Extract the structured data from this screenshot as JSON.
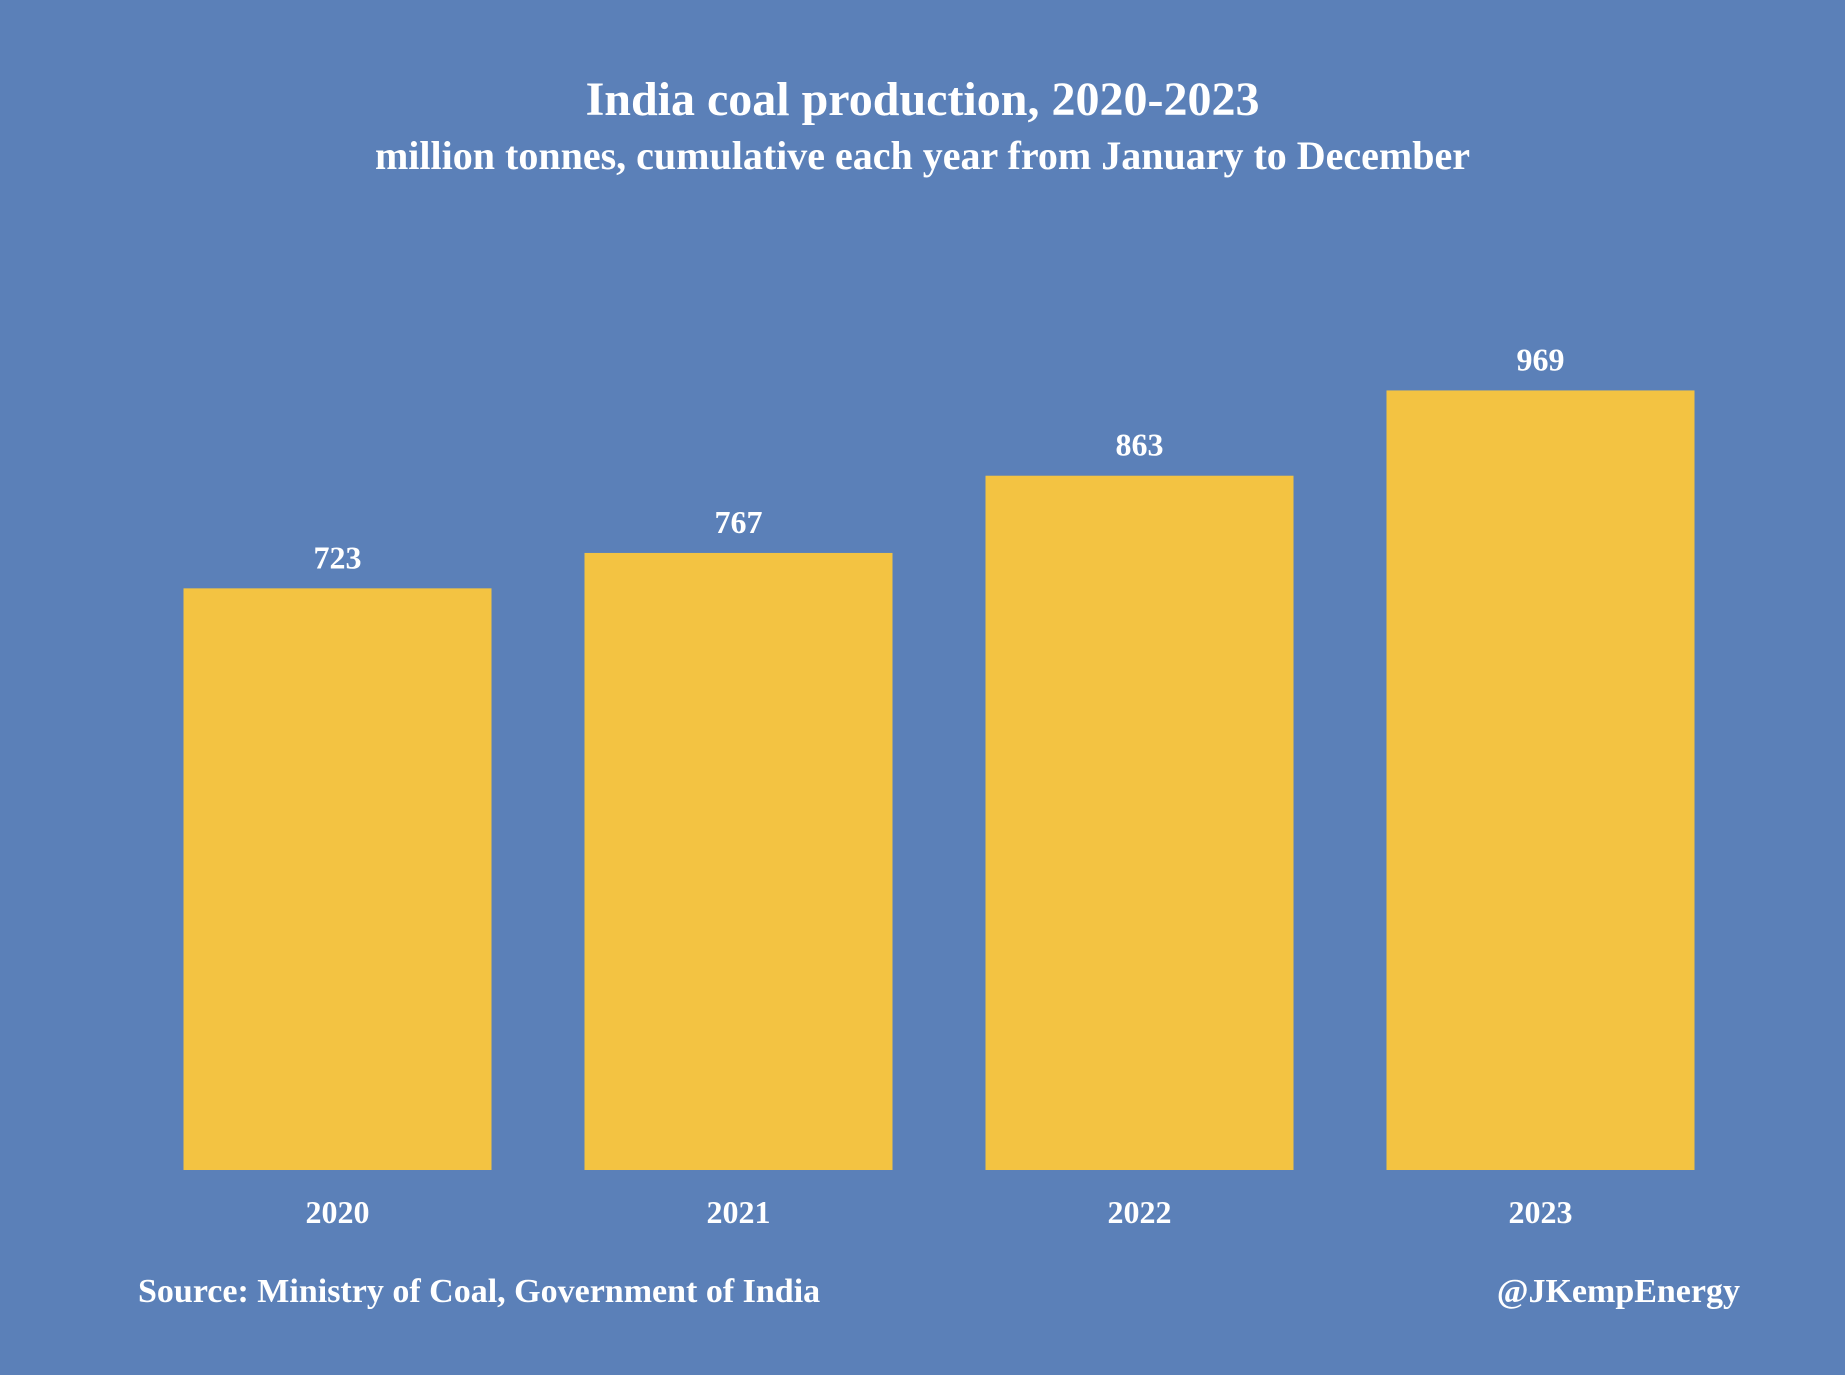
{
  "colors": {
    "background": "#5b80b8",
    "bar": "#f3c342",
    "text": "#ffffff"
  },
  "chart_data": {
    "type": "bar",
    "title": "India coal production, 2020-2023",
    "subtitle": "million tonnes, cumulative each year from January to December",
    "categories": [
      "2020",
      "2021",
      "2022",
      "2023"
    ],
    "values": [
      723,
      767,
      863,
      969
    ],
    "data_labels": [
      "723",
      "767",
      "863",
      "969"
    ],
    "xlabel": "",
    "ylabel": "",
    "ylim": [
      0,
      1000
    ],
    "grid": false,
    "legend": "none"
  },
  "footer": {
    "source": "Source: Ministry of Coal, Government of India",
    "credit": "@JKempEnergy"
  }
}
